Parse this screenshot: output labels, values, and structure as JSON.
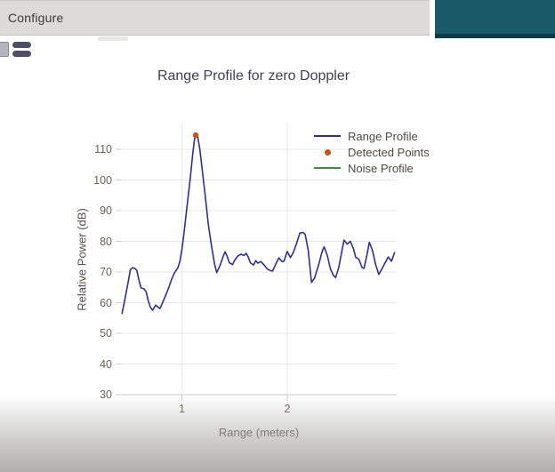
{
  "header": {
    "tab_label": "Configure",
    "teal_color": "#1a5a68",
    "teal_border_color": "#0e3a47"
  },
  "toolbar": {
    "icons": [
      {
        "name": "partial-square-icon"
      },
      {
        "name": "list-bars-icon"
      }
    ]
  },
  "chart_data": {
    "type": "line",
    "title": "Range Profile for zero Doppler",
    "xlabel": "Range (meters)",
    "ylabel": "Relative Power (dB)",
    "xlim": [
      0.42,
      3.04
    ],
    "ylim": [
      30,
      118
    ],
    "xticks": [
      1,
      2
    ],
    "yticks": [
      30,
      40,
      50,
      60,
      70,
      80,
      90,
      100,
      110
    ],
    "grid": true,
    "legend_position": "top-right-inside",
    "colors": {
      "grid": "#e9e8e7",
      "axis_line": "#cbcac8",
      "tick_text": "#6b6258"
    },
    "series": [
      {
        "name": "Range Profile",
        "type": "line",
        "color": "#2f2f9c",
        "points": [
          [
            0.43,
            56.5
          ],
          [
            0.46,
            61.5
          ],
          [
            0.49,
            67.0
          ],
          [
            0.51,
            70.8
          ],
          [
            0.53,
            71.4
          ],
          [
            0.55,
            71.2
          ],
          [
            0.57,
            70.6
          ],
          [
            0.59,
            67.5
          ],
          [
            0.61,
            64.8
          ],
          [
            0.64,
            64.5
          ],
          [
            0.66,
            63.5
          ],
          [
            0.68,
            60.5
          ],
          [
            0.7,
            58.5
          ],
          [
            0.72,
            57.5
          ],
          [
            0.75,
            59.2
          ],
          [
            0.77,
            58.6
          ],
          [
            0.79,
            58.1
          ],
          [
            0.81,
            59.5
          ],
          [
            0.84,
            62.0
          ],
          [
            0.87,
            64.5
          ],
          [
            0.9,
            67.5
          ],
          [
            0.93,
            69.8
          ],
          [
            0.96,
            71.3
          ],
          [
            0.98,
            73.5
          ],
          [
            1.0,
            77.5
          ],
          [
            1.02,
            83.0
          ],
          [
            1.05,
            92.0
          ],
          [
            1.08,
            101.0
          ],
          [
            1.1,
            108.0
          ],
          [
            1.12,
            113.5
          ],
          [
            1.13,
            114.4
          ],
          [
            1.15,
            113.9
          ],
          [
            1.17,
            110.0
          ],
          [
            1.19,
            104.0
          ],
          [
            1.22,
            95.0
          ],
          [
            1.25,
            85.5
          ],
          [
            1.28,
            78.5
          ],
          [
            1.31,
            72.5
          ],
          [
            1.33,
            69.8
          ],
          [
            1.36,
            72.0
          ],
          [
            1.39,
            75.0
          ],
          [
            1.41,
            76.6
          ],
          [
            1.43,
            75.0
          ],
          [
            1.45,
            73.0
          ],
          [
            1.48,
            72.4
          ],
          [
            1.5,
            73.8
          ],
          [
            1.53,
            75.2
          ],
          [
            1.56,
            75.8
          ],
          [
            1.59,
            75.4
          ],
          [
            1.61,
            76.1
          ],
          [
            1.63,
            74.8
          ],
          [
            1.65,
            73.0
          ],
          [
            1.68,
            72.3
          ],
          [
            1.7,
            73.7
          ],
          [
            1.72,
            72.9
          ],
          [
            1.75,
            73.4
          ],
          [
            1.78,
            72.3
          ],
          [
            1.81,
            71.0
          ],
          [
            1.83,
            70.6
          ],
          [
            1.86,
            70.3
          ],
          [
            1.89,
            72.5
          ],
          [
            1.92,
            74.6
          ],
          [
            1.95,
            73.4
          ],
          [
            1.97,
            73.6
          ],
          [
            2.0,
            76.7
          ],
          [
            2.03,
            74.7
          ],
          [
            2.06,
            76.5
          ],
          [
            2.09,
            79.5
          ],
          [
            2.12,
            82.7
          ],
          [
            2.15,
            82.9
          ],
          [
            2.17,
            82.3
          ],
          [
            2.2,
            77.0
          ],
          [
            2.23,
            66.6
          ],
          [
            2.26,
            68.0
          ],
          [
            2.3,
            72.5
          ],
          [
            2.33,
            76.5
          ],
          [
            2.35,
            78.2
          ],
          [
            2.38,
            75.5
          ],
          [
            2.41,
            71.0
          ],
          [
            2.44,
            68.8
          ],
          [
            2.46,
            68.2
          ],
          [
            2.49,
            71.5
          ],
          [
            2.52,
            77.0
          ],
          [
            2.54,
            80.4
          ],
          [
            2.57,
            79.1
          ],
          [
            2.6,
            80.0
          ],
          [
            2.63,
            77.5
          ],
          [
            2.65,
            74.8
          ],
          [
            2.68,
            74.2
          ],
          [
            2.71,
            71.5
          ],
          [
            2.73,
            71.2
          ],
          [
            2.76,
            76.0
          ],
          [
            2.78,
            79.7
          ],
          [
            2.81,
            77.0
          ],
          [
            2.84,
            72.5
          ],
          [
            2.87,
            69.2
          ],
          [
            2.9,
            71.0
          ],
          [
            2.93,
            73.0
          ],
          [
            2.96,
            74.9
          ],
          [
            2.99,
            73.5
          ],
          [
            3.02,
            76.3
          ]
        ]
      },
      {
        "name": "Detected Points",
        "type": "scatter",
        "color": "#cc5210",
        "points": [
          [
            1.13,
            114.6
          ]
        ]
      },
      {
        "name": "Noise Profile",
        "type": "line",
        "color": "#3c8c42",
        "points": []
      }
    ]
  }
}
